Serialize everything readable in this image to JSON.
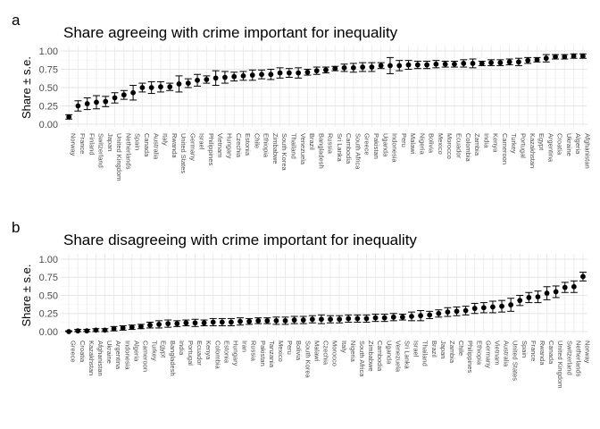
{
  "chart_data": [
    {
      "panel": "a",
      "type": "scatter",
      "title": "Share agreeing with crime important for inequality",
      "ylabel": "Share ± s.e.",
      "xlabel": "",
      "ylim": [
        0,
        1
      ],
      "yticks": [
        "0.00",
        "0.25",
        "0.50",
        "0.75",
        "1.00"
      ],
      "grid": true,
      "categories": [
        "Norway",
        "France",
        "Finland",
        "Switzerland",
        "Japan",
        "United Kingdom",
        "Netherlands",
        "Spain",
        "Canada",
        "Australia",
        "Italy",
        "Rwanda",
        "United States",
        "Germany",
        "Israel",
        "Philippines",
        "Vietnam",
        "Hungary",
        "Czechia",
        "Estonia",
        "Chile",
        "Ethiopia",
        "Zimbabwe",
        "South Korea",
        "Thailand",
        "Venezuela",
        "Brazil",
        "Bangladesh",
        "Russia",
        "Sri Lanka",
        "Cambodia",
        "South Africa",
        "Greece",
        "Pakistan",
        "Uganda",
        "Indonesia",
        "Peru",
        "Malawi",
        "Nigeria",
        "Bolivia",
        "Mexico",
        "Morocco",
        "Ecuador",
        "Colombia",
        "Zambia",
        "India",
        "Kenya",
        "Cameroon",
        "Turkey",
        "Portugal",
        "Kazakhstan",
        "Egypt",
        "Argentina",
        "Croatia",
        "Ukraine",
        "Algeria",
        "Afghanistan"
      ],
      "values": [
        0.1,
        0.25,
        0.28,
        0.3,
        0.31,
        0.36,
        0.4,
        0.43,
        0.5,
        0.5,
        0.51,
        0.51,
        0.55,
        0.56,
        0.6,
        0.61,
        0.63,
        0.64,
        0.65,
        0.66,
        0.67,
        0.68,
        0.68,
        0.7,
        0.7,
        0.7,
        0.71,
        0.73,
        0.74,
        0.76,
        0.77,
        0.77,
        0.78,
        0.78,
        0.8,
        0.8,
        0.8,
        0.81,
        0.81,
        0.81,
        0.82,
        0.82,
        0.82,
        0.83,
        0.83,
        0.83,
        0.84,
        0.84,
        0.85,
        0.85,
        0.87,
        0.88,
        0.9,
        0.92,
        0.92,
        0.93,
        0.93
      ],
      "errors": [
        0.03,
        0.07,
        0.08,
        0.09,
        0.07,
        0.07,
        0.06,
        0.1,
        0.06,
        0.08,
        0.07,
        0.05,
        0.11,
        0.06,
        0.08,
        0.05,
        0.1,
        0.08,
        0.06,
        0.06,
        0.07,
        0.06,
        0.07,
        0.07,
        0.06,
        0.07,
        0.04,
        0.05,
        0.04,
        0.03,
        0.05,
        0.06,
        0.06,
        0.06,
        0.04,
        0.11,
        0.07,
        0.06,
        0.05,
        0.05,
        0.05,
        0.04,
        0.04,
        0.05,
        0.06,
        0.03,
        0.04,
        0.04,
        0.04,
        0.05,
        0.04,
        0.03,
        0.05,
        0.03,
        0.03,
        0.03,
        0.03
      ]
    },
    {
      "panel": "b",
      "type": "scatter",
      "title": "Share disagreeing with crime important for inequality",
      "ylabel": "Share ± s.e.",
      "xlabel": "",
      "ylim": [
        0,
        1
      ],
      "yticks": [
        "0.00",
        "0.25",
        "0.50",
        "0.75",
        "1.00"
      ],
      "grid": true,
      "categories": [
        "Greece",
        "Croatia",
        "Kazakhstan",
        "Afghanistan",
        "Ukraine",
        "Argentina",
        "Indonesia",
        "Algeria",
        "Cameroon",
        "Turkey",
        "Egypt",
        "Bangladesh",
        "India",
        "Portugal",
        "Ecuador",
        "Kenya",
        "Colombia",
        "Estonia",
        "Hungary",
        "Iran",
        "Russia",
        "Pakistan",
        "Tanzania",
        "Mexico",
        "Peru",
        "Bolivia",
        "South Korea",
        "Malawi",
        "Czechia",
        "Morocco",
        "Italy",
        "Nigeria",
        "South Africa",
        "Zimbabwe",
        "Cambodia",
        "Uganda",
        "Venezuela",
        "Sri Lanka",
        "Israel",
        "Thailand",
        "Brazil",
        "Japan",
        "Zambia",
        "Chile",
        "Philippines",
        "Ethiopia",
        "Germany",
        "Vietnam",
        "Australia",
        "United States",
        "Spain",
        "France",
        "Rwanda",
        "Canada",
        "United Kingdom",
        "Switzerland",
        "Netherlands",
        "Norway"
      ],
      "values": [
        0.0,
        0.01,
        0.01,
        0.02,
        0.02,
        0.04,
        0.05,
        0.06,
        0.07,
        0.09,
        0.1,
        0.11,
        0.11,
        0.12,
        0.12,
        0.12,
        0.13,
        0.13,
        0.13,
        0.14,
        0.14,
        0.15,
        0.15,
        0.15,
        0.15,
        0.16,
        0.16,
        0.17,
        0.17,
        0.17,
        0.17,
        0.18,
        0.18,
        0.18,
        0.19,
        0.19,
        0.2,
        0.2,
        0.21,
        0.22,
        0.23,
        0.25,
        0.27,
        0.28,
        0.29,
        0.32,
        0.33,
        0.34,
        0.35,
        0.37,
        0.43,
        0.47,
        0.48,
        0.53,
        0.55,
        0.61,
        0.62,
        0.76
      ],
      "errors": [
        0.01,
        0.02,
        0.02,
        0.02,
        0.02,
        0.03,
        0.03,
        0.03,
        0.03,
        0.04,
        0.05,
        0.05,
        0.04,
        0.04,
        0.05,
        0.04,
        0.05,
        0.05,
        0.05,
        0.05,
        0.04,
        0.04,
        0.04,
        0.05,
        0.05,
        0.05,
        0.05,
        0.05,
        0.06,
        0.05,
        0.05,
        0.05,
        0.05,
        0.05,
        0.05,
        0.05,
        0.05,
        0.04,
        0.06,
        0.07,
        0.05,
        0.05,
        0.06,
        0.06,
        0.06,
        0.07,
        0.07,
        0.08,
        0.08,
        0.09,
        0.07,
        0.07,
        0.08,
        0.09,
        0.08,
        0.07,
        0.08,
        0.06
      ]
    }
  ]
}
